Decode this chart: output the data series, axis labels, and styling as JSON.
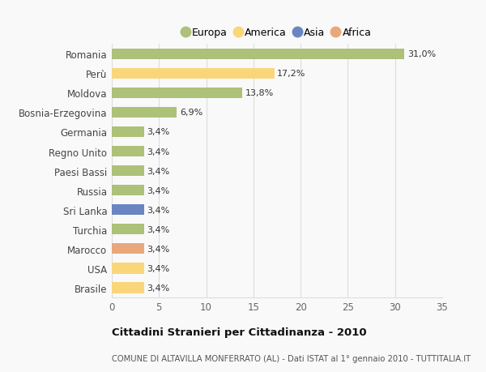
{
  "categories": [
    "Romania",
    "Perù",
    "Moldova",
    "Bosnia-Erzegovina",
    "Germania",
    "Regno Unito",
    "Paesi Bassi",
    "Russia",
    "Sri Lanka",
    "Turchia",
    "Marocco",
    "USA",
    "Brasile"
  ],
  "values": [
    31.0,
    17.2,
    13.8,
    6.9,
    3.4,
    3.4,
    3.4,
    3.4,
    3.4,
    3.4,
    3.4,
    3.4,
    3.4
  ],
  "colors": [
    "#adc178",
    "#f9d67a",
    "#adc178",
    "#adc178",
    "#adc178",
    "#adc178",
    "#adc178",
    "#adc178",
    "#6b85c2",
    "#adc178",
    "#e8a87c",
    "#f9d67a",
    "#f9d67a"
  ],
  "labels": [
    "31,0%",
    "17,2%",
    "13,8%",
    "6,9%",
    "3,4%",
    "3,4%",
    "3,4%",
    "3,4%",
    "3,4%",
    "3,4%",
    "3,4%",
    "3,4%",
    "3,4%"
  ],
  "xlim": [
    0,
    35
  ],
  "xticks": [
    0,
    5,
    10,
    15,
    20,
    25,
    30,
    35
  ],
  "title": "Cittadini Stranieri per Cittadinanza - 2010",
  "subtitle": "COMUNE DI ALTAVILLA MONFERRATO (AL) - Dati ISTAT al 1° gennaio 2010 - TUTTITALIA.IT",
  "legend_labels": [
    "Europa",
    "America",
    "Asia",
    "Africa"
  ],
  "legend_colors": [
    "#adc178",
    "#f9d67a",
    "#6b85c2",
    "#e8a87c"
  ],
  "background_color": "#f9f9f9",
  "grid_color": "#dddddd",
  "bar_height": 0.55
}
